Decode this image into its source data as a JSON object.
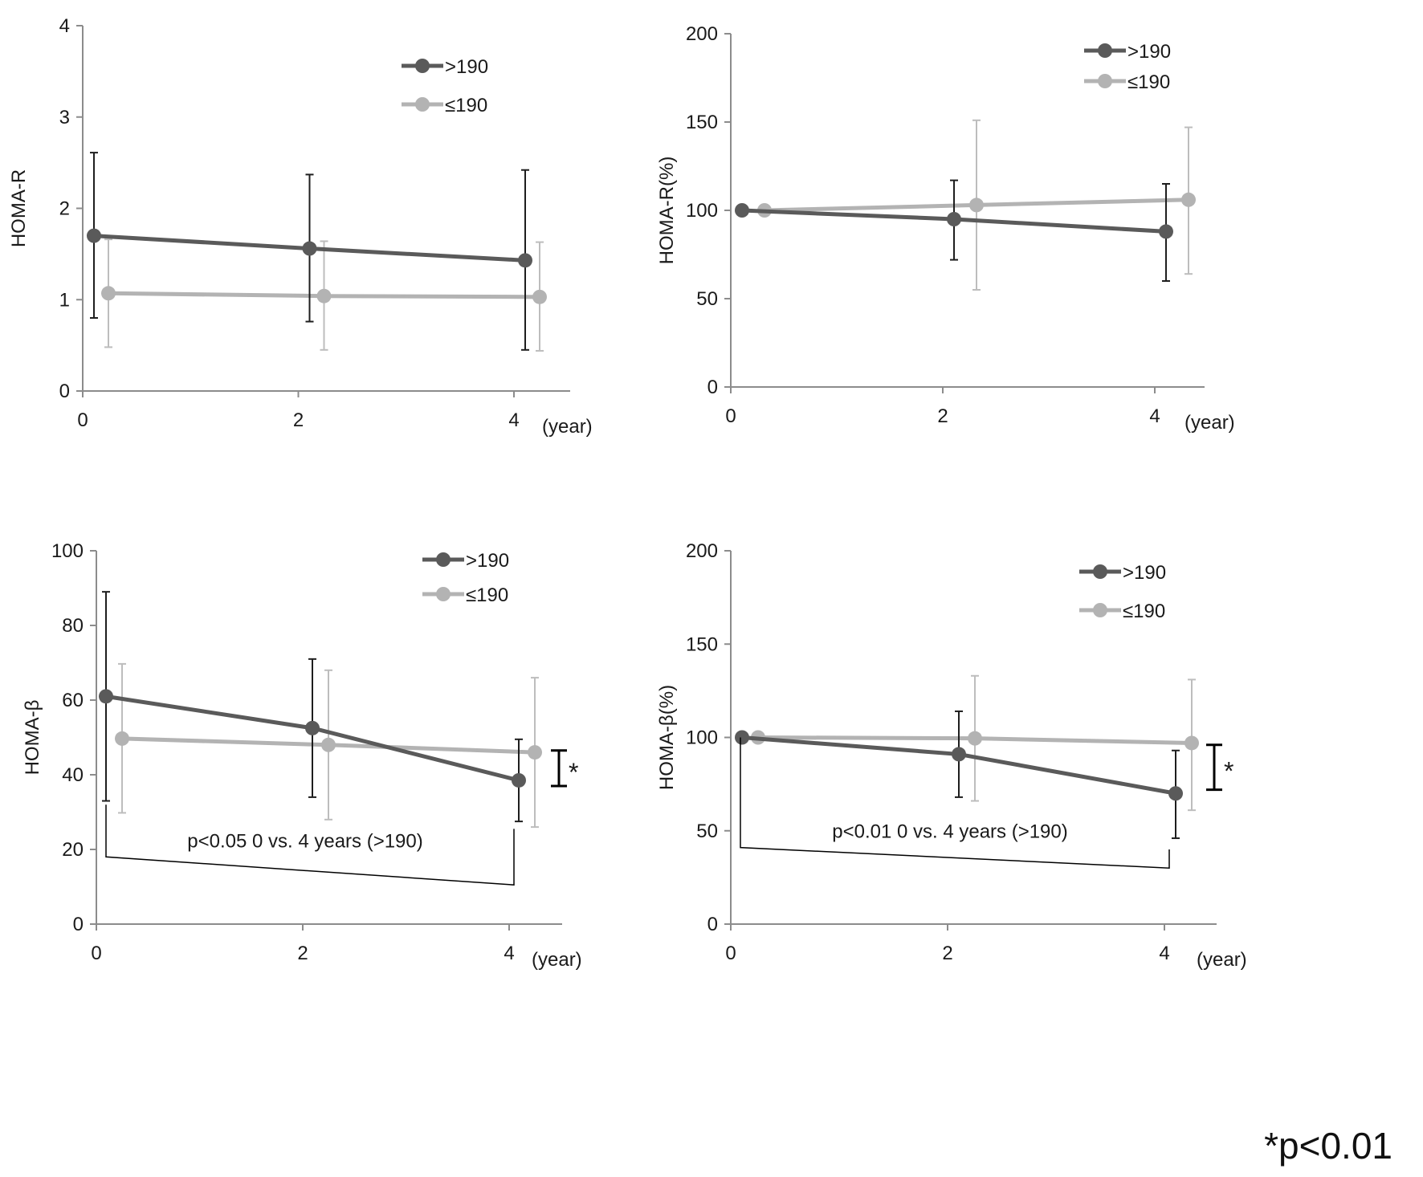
{
  "colors": {
    "series_dark": "#5a5a5a",
    "series_light": "#b3b3b3",
    "axis": "#8c8c8c",
    "text": "#1a1a1a",
    "bracket": "#000000"
  },
  "footnote": "*p<0.01",
  "chart_data": [
    {
      "type": "line",
      "ylabel": "HOMA-R",
      "xunit": "(year)",
      "x": [
        0,
        2,
        4
      ],
      "xticks": [
        "0",
        "2",
        "4"
      ],
      "ylim": [
        0,
        4
      ],
      "yticks": [
        0,
        1,
        2,
        3,
        4
      ],
      "grid": false,
      "legend_position": "top-right",
      "series": [
        {
          "name": ">190",
          "values": [
            1.7,
            1.56,
            1.43
          ],
          "err_low": [
            0.8,
            0.76,
            0.45
          ],
          "err_high": [
            2.61,
            2.37,
            2.42
          ]
        },
        {
          "name": "≤190",
          "values": [
            1.07,
            1.04,
            1.03
          ],
          "err_low": [
            0.48,
            0.45,
            0.44
          ],
          "err_high": [
            1.66,
            1.64,
            1.63
          ]
        }
      ],
      "significance": null,
      "bracket": null
    },
    {
      "type": "line",
      "ylabel": "HOMA-R(%)",
      "xunit": "(year)",
      "x": [
        0,
        2,
        4
      ],
      "xticks": [
        "0",
        "2",
        "4"
      ],
      "ylim": [
        0,
        200
      ],
      "yticks": [
        0,
        50,
        100,
        150,
        200
      ],
      "grid": false,
      "legend_position": "top-right",
      "series": [
        {
          "name": ">190",
          "values": [
            100,
            95,
            88
          ],
          "err_low": [
            100,
            72,
            60
          ],
          "err_high": [
            100,
            117,
            115
          ]
        },
        {
          "name": "≤190",
          "values": [
            100,
            103,
            106
          ],
          "err_low": [
            100,
            55,
            64
          ],
          "err_high": [
            100,
            151,
            147
          ]
        }
      ],
      "significance": null,
      "bracket": null
    },
    {
      "type": "line",
      "ylabel": "HOMA-β",
      "xunit": "(year)",
      "x": [
        0,
        2,
        4
      ],
      "xticks": [
        "0",
        "2",
        "4"
      ],
      "ylim": [
        0,
        100
      ],
      "yticks": [
        0,
        20,
        40,
        60,
        80,
        100
      ],
      "grid": false,
      "legend_position": "top-right",
      "series": [
        {
          "name": ">190",
          "values": [
            61,
            52.5,
            38.5
          ],
          "err_low": [
            33,
            34,
            27.5
          ],
          "err_high": [
            89,
            71,
            49.5
          ]
        },
        {
          "name": "≤190",
          "values": [
            49.7,
            48,
            46
          ],
          "err_low": [
            29.8,
            28,
            26
          ],
          "err_high": [
            69.7,
            68,
            66
          ]
        }
      ],
      "significance": {
        "label": "*",
        "from": 37,
        "to": 46.5
      },
      "bracket": {
        "text": "p<0.05   0 vs. 4 years (>190)",
        "y_start": 18,
        "y_end": 10.5,
        "top": 32,
        "top_end": 25.5
      }
    },
    {
      "type": "line",
      "ylabel": "HOMA-β(%)",
      "xunit": "(year)",
      "x": [
        0,
        2,
        4
      ],
      "xticks": [
        "0",
        "2",
        "4"
      ],
      "ylim": [
        0,
        200
      ],
      "yticks": [
        0,
        50,
        100,
        150,
        200
      ],
      "grid": false,
      "legend_position": "top-right",
      "series": [
        {
          "name": ">190",
          "values": [
            100,
            91,
            70
          ],
          "err_low": [
            100,
            68,
            46
          ],
          "err_high": [
            100,
            114,
            93
          ]
        },
        {
          "name": "≤190",
          "values": [
            100,
            99.5,
            97
          ],
          "err_low": [
            100,
            66,
            61
          ],
          "err_high": [
            100,
            133,
            131
          ]
        }
      ],
      "significance": {
        "label": "*",
        "from": 72,
        "to": 96
      },
      "bracket": {
        "text": "p<0.01   0 vs. 4 years (>190)",
        "y_start": 41,
        "y_end": 30,
        "top": 100,
        "top_end": 40
      }
    }
  ]
}
